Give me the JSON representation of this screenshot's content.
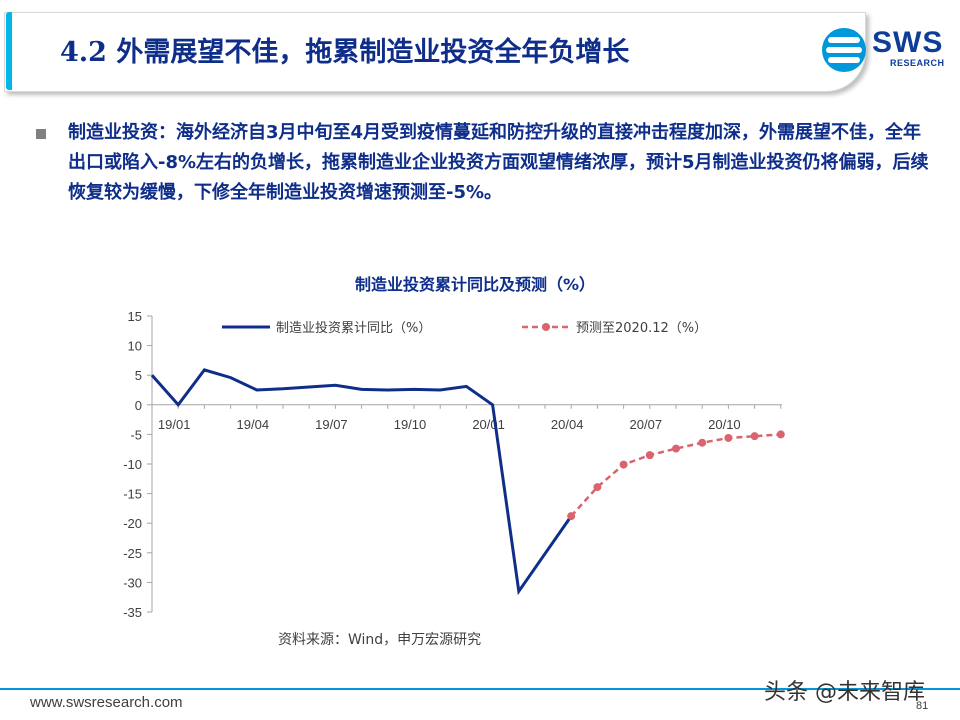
{
  "slide": {
    "title": "4.2 外需展望不佳，拖累制造业投资全年负增长",
    "body": "制造业投资：海外经济自3月中旬至4月受到疫情蔓延和防控升级的直接冲击程度加深，外需展望不佳，全年出口或陷入-8%左右的负增长，拖累制造业企业投资方面观望情绪浓厚，预计5月制造业投资仍将偏弱，后续恢复较为缓慢，下修全年制造业投资增速预测至-5%。",
    "source": "资料来源：Wind，申万宏源研究",
    "footer_url": "www.swsresearch.com",
    "page_number": "81",
    "watermark": "头条 @未来智库"
  },
  "logo": {
    "text": "SWS",
    "subtext": "RESEARCH"
  },
  "chart_data": {
    "type": "line",
    "title": "制造业投资累计同比及预测（%）",
    "ylim": [
      -35,
      15
    ],
    "yticks": [
      15,
      10,
      5,
      0,
      -5,
      -10,
      -15,
      -20,
      -25,
      -30,
      -35
    ],
    "xticks": [
      "19/01",
      "19/04",
      "19/07",
      "19/10",
      "20/01",
      "20/04",
      "20/07",
      "20/10"
    ],
    "legend_position": "top",
    "series": [
      {
        "name": "制造业投资累计同比（%）",
        "style": "solid",
        "color": "#0f2e8a",
        "points": [
          [
            "2018-12",
            5.0
          ],
          [
            "2019-01",
            0.0
          ],
          [
            "2019-02",
            5.9
          ],
          [
            "2019-03",
            4.6
          ],
          [
            "2019-04",
            2.5
          ],
          [
            "2019-05",
            2.7
          ],
          [
            "2019-06",
            3.0
          ],
          [
            "2019-07",
            3.3
          ],
          [
            "2019-08",
            2.6
          ],
          [
            "2019-09",
            2.5
          ],
          [
            "2019-10",
            2.6
          ],
          [
            "2019-11",
            2.5
          ],
          [
            "2019-12",
            3.1
          ],
          [
            "2020-01",
            0.0
          ],
          [
            "2020-02",
            -31.5
          ],
          [
            "2020-04",
            -18.8
          ]
        ]
      },
      {
        "name": "预测至2020.12（%）",
        "style": "dashed",
        "color": "#d9646e",
        "points": [
          [
            "2020-04",
            -18.8
          ],
          [
            "2020-05",
            -13.9
          ],
          [
            "2020-06",
            -10.1
          ],
          [
            "2020-07",
            -8.5
          ],
          [
            "2020-08",
            -7.4
          ],
          [
            "2020-09",
            -6.4
          ],
          [
            "2020-10",
            -5.6
          ],
          [
            "2020-11",
            -5.3
          ],
          [
            "2020-12",
            -5.0
          ]
        ]
      }
    ]
  }
}
